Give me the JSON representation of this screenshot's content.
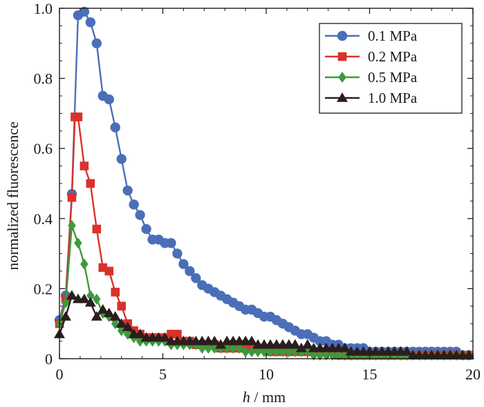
{
  "chart_data": {
    "type": "line",
    "title": "",
    "xlabel_var": "h",
    "xlabel_unit": " / mm",
    "ylabel": "normalized fluorescence",
    "xlim": [
      0,
      20
    ],
    "ylim": [
      0,
      1.0
    ],
    "xticks": [
      0,
      5,
      10,
      15,
      20
    ],
    "xtick_labels": [
      "0",
      "5",
      "10",
      "15",
      "20"
    ],
    "yticks": [
      0,
      0.2,
      0.4,
      0.6,
      0.8,
      1.0
    ],
    "ytick_labels": [
      "0",
      "0.2",
      "0.4",
      "0.6",
      "0.8",
      "1.0"
    ],
    "grid": false,
    "legend_position": "top-right",
    "series": [
      {
        "name": "0.1 MPa",
        "color": "#4a6fb8",
        "marker": "circle",
        "x": [
          0.0,
          0.3,
          0.6,
          0.9,
          1.2,
          1.5,
          1.8,
          2.1,
          2.4,
          2.7,
          3.0,
          3.3,
          3.6,
          3.9,
          4.2,
          4.5,
          4.8,
          5.1,
          5.4,
          5.7,
          6.0,
          6.3,
          6.6,
          6.9,
          7.2,
          7.5,
          7.8,
          8.1,
          8.4,
          8.7,
          9.0,
          9.3,
          9.6,
          9.9,
          10.2,
          10.5,
          10.8,
          11.1,
          11.4,
          11.7,
          12.0,
          12.3,
          12.6,
          12.9,
          13.2,
          13.5,
          13.8,
          14.1,
          14.4,
          14.7,
          15.0,
          15.3,
          15.6,
          15.9,
          16.2,
          16.5,
          16.8,
          17.1,
          17.4,
          17.7,
          18.0,
          18.3,
          18.6,
          18.9,
          19.2,
          19.5,
          19.8
        ],
        "y": [
          0.11,
          0.18,
          0.47,
          0.98,
          0.99,
          0.96,
          0.9,
          0.75,
          0.74,
          0.66,
          0.57,
          0.48,
          0.44,
          0.41,
          0.37,
          0.34,
          0.34,
          0.33,
          0.33,
          0.3,
          0.27,
          0.25,
          0.23,
          0.21,
          0.2,
          0.19,
          0.18,
          0.17,
          0.16,
          0.15,
          0.14,
          0.14,
          0.13,
          0.12,
          0.12,
          0.11,
          0.1,
          0.09,
          0.08,
          0.07,
          0.07,
          0.06,
          0.05,
          0.05,
          0.04,
          0.04,
          0.03,
          0.03,
          0.03,
          0.03,
          0.02,
          0.02,
          0.02,
          0.02,
          0.02,
          0.02,
          0.02,
          0.02,
          0.02,
          0.02,
          0.02,
          0.02,
          0.02,
          0.02,
          0.02,
          0.01,
          0.01
        ]
      },
      {
        "name": "0.2 MPa",
        "color": "#d9322b",
        "marker": "square",
        "x": [
          0.0,
          0.3,
          0.6,
          0.75,
          0.9,
          1.2,
          1.5,
          1.8,
          2.1,
          2.4,
          2.7,
          3.0,
          3.3,
          3.6,
          3.9,
          4.2,
          4.5,
          4.8,
          5.1,
          5.4,
          5.7,
          6.0,
          6.3,
          6.6,
          6.9,
          7.2,
          7.5,
          7.8,
          8.1,
          8.4,
          8.7,
          9.0,
          9.3,
          9.6,
          9.9,
          10.2,
          10.5,
          10.8,
          11.1,
          11.4,
          11.7,
          12.0,
          12.3,
          12.6,
          12.9,
          13.2,
          13.5,
          13.8,
          14.1,
          14.4,
          14.7,
          15.0,
          15.3,
          15.6,
          15.9,
          16.2,
          16.5,
          16.8,
          17.1,
          17.4,
          17.7,
          18.0,
          18.3,
          18.6,
          18.9,
          19.2,
          19.5,
          19.8
        ],
        "y": [
          0.1,
          0.17,
          0.46,
          0.69,
          0.69,
          0.55,
          0.5,
          0.37,
          0.26,
          0.25,
          0.19,
          0.15,
          0.1,
          0.08,
          0.07,
          0.06,
          0.06,
          0.06,
          0.06,
          0.07,
          0.07,
          0.05,
          0.05,
          0.04,
          0.04,
          0.04,
          0.04,
          0.03,
          0.03,
          0.03,
          0.03,
          0.03,
          0.03,
          0.03,
          0.03,
          0.02,
          0.02,
          0.02,
          0.02,
          0.02,
          0.02,
          0.02,
          0.02,
          0.02,
          0.02,
          0.02,
          0.01,
          0.01,
          0.01,
          0.01,
          0.01,
          0.01,
          0.01,
          0.01,
          0.01,
          0.01,
          0.01,
          0.01,
          0.01,
          0.01,
          0.01,
          0.01,
          0.01,
          0.01,
          0.01,
          0.01,
          0.01,
          0.01
        ]
      },
      {
        "name": "0.5 MPa",
        "color": "#3c9a3c",
        "marker": "diamond",
        "x": [
          0.0,
          0.3,
          0.6,
          0.9,
          1.2,
          1.5,
          1.8,
          2.1,
          2.4,
          2.7,
          3.0,
          3.3,
          3.6,
          3.9,
          4.2,
          4.5,
          4.8,
          5.1,
          5.4,
          5.7,
          6.0,
          6.3,
          6.6,
          6.9,
          7.2,
          7.5,
          7.8,
          8.1,
          8.4,
          8.7,
          9.0,
          9.3,
          9.6,
          9.9,
          10.2,
          10.5,
          10.8,
          11.1,
          11.4,
          11.7,
          12.0,
          12.3,
          12.6,
          12.9,
          13.2,
          13.5,
          13.8,
          14.1,
          14.4,
          14.7,
          15.0,
          15.3,
          15.6,
          15.9,
          16.2,
          16.5,
          16.8,
          17.1,
          17.4,
          17.7,
          18.0,
          18.3,
          18.6,
          18.9,
          19.2,
          19.5,
          19.8
        ],
        "y": [
          0.1,
          0.16,
          0.38,
          0.33,
          0.27,
          0.18,
          0.17,
          0.13,
          0.12,
          0.1,
          0.08,
          0.07,
          0.06,
          0.05,
          0.05,
          0.05,
          0.05,
          0.05,
          0.04,
          0.04,
          0.04,
          0.04,
          0.04,
          0.03,
          0.03,
          0.03,
          0.03,
          0.03,
          0.03,
          0.03,
          0.02,
          0.02,
          0.02,
          0.02,
          0.02,
          0.02,
          0.02,
          0.02,
          0.02,
          0.02,
          0.02,
          0.01,
          0.01,
          0.01,
          0.01,
          0.01,
          0.01,
          0.01,
          0.01,
          0.01,
          0.01,
          0.01,
          0.01,
          0.01,
          0.01,
          0.01,
          0.01,
          0.01,
          0.01,
          0.01,
          0.01,
          0.01,
          0.01,
          0.01,
          0.01,
          0.01,
          0.01
        ]
      },
      {
        "name": "1.0 MPa",
        "color": "#2a1e1e",
        "marker": "triangle",
        "x": [
          0.0,
          0.3,
          0.6,
          0.9,
          1.2,
          1.5,
          1.8,
          2.1,
          2.4,
          2.7,
          3.0,
          3.3,
          3.6,
          3.9,
          4.2,
          4.5,
          4.8,
          5.1,
          5.4,
          5.7,
          6.0,
          6.3,
          6.6,
          6.9,
          7.2,
          7.5,
          7.8,
          8.1,
          8.4,
          8.7,
          9.0,
          9.3,
          9.6,
          9.9,
          10.2,
          10.5,
          10.8,
          11.1,
          11.4,
          11.7,
          12.0,
          12.3,
          12.6,
          12.9,
          13.2,
          13.5,
          13.8,
          14.1,
          14.4,
          14.7,
          15.0,
          15.3,
          15.6,
          15.9,
          16.2,
          16.5,
          16.8,
          17.1,
          17.4,
          17.7,
          18.0,
          18.3,
          18.6,
          18.9,
          19.2,
          19.5,
          19.8
        ],
        "y": [
          0.07,
          0.12,
          0.18,
          0.17,
          0.17,
          0.16,
          0.12,
          0.14,
          0.13,
          0.12,
          0.1,
          0.09,
          0.07,
          0.07,
          0.06,
          0.06,
          0.06,
          0.06,
          0.05,
          0.05,
          0.05,
          0.05,
          0.05,
          0.05,
          0.05,
          0.05,
          0.04,
          0.05,
          0.05,
          0.05,
          0.05,
          0.05,
          0.04,
          0.04,
          0.04,
          0.04,
          0.04,
          0.04,
          0.04,
          0.03,
          0.04,
          0.03,
          0.03,
          0.03,
          0.03,
          0.03,
          0.03,
          0.02,
          0.02,
          0.02,
          0.02,
          0.02,
          0.02,
          0.02,
          0.02,
          0.02,
          0.02,
          0.01,
          0.01,
          0.01,
          0.01,
          0.01,
          0.01,
          0.01,
          0.01,
          0.01,
          0.01
        ]
      }
    ]
  }
}
